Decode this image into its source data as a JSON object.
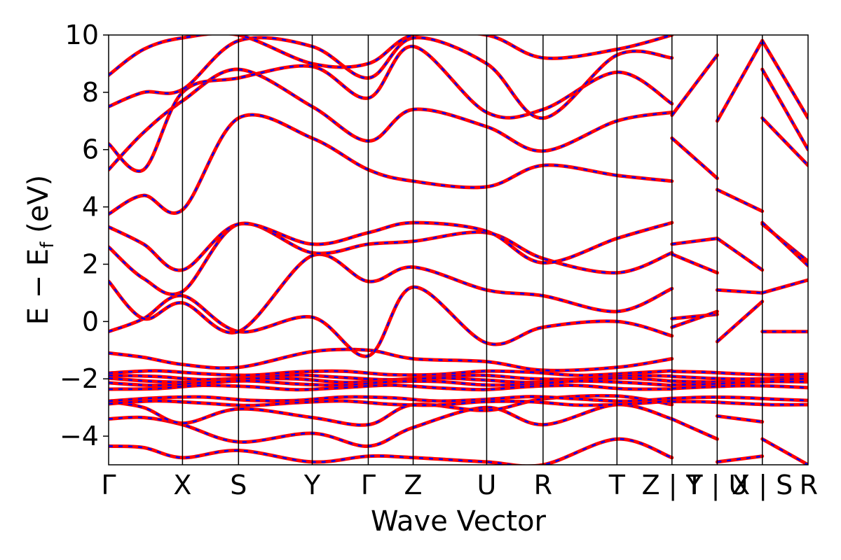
{
  "chart_data": {
    "type": "line",
    "xlabel": "Wave Vector",
    "ylabel": "E − E",
    "ylabel_sub": "f",
    "ylabel_unit": " (eV)",
    "ylim": [
      -5,
      10
    ],
    "yticks": [
      {
        "value": 10,
        "label": "10"
      },
      {
        "value": 8,
        "label": "8"
      },
      {
        "value": 6,
        "label": "6"
      },
      {
        "value": 4,
        "label": "4"
      },
      {
        "value": 2,
        "label": "2"
      },
      {
        "value": 0,
        "label": "0"
      },
      {
        "value": -2,
        "label": "−2"
      },
      {
        "value": -4,
        "label": "−4"
      }
    ],
    "xlim": [
      0,
      1
    ],
    "kpoints": [
      {
        "label": "Γ",
        "x": 0.0
      },
      {
        "label": "X",
        "x": 0.1056
      },
      {
        "label": "S",
        "x": 0.1857
      },
      {
        "label": "Y",
        "x": 0.2911
      },
      {
        "label": "Γ",
        "x": 0.3712
      },
      {
        "label": "Z",
        "x": 0.4354
      },
      {
        "label": "U",
        "x": 0.5405
      },
      {
        "label": "R",
        "x": 0.6211
      },
      {
        "label": "T",
        "x": 0.7268
      },
      {
        "label": "Z | Y",
        "x": 0.8054
      },
      {
        "label": "T | U",
        "x": 0.8701
      },
      {
        "label": "X | S",
        "x": 0.9346
      },
      {
        "label": "R",
        "x": 1.0
      }
    ],
    "segment_breaks": [
      0.8054,
      0.8701,
      0.9346
    ],
    "series": [
      {
        "color": "#ff0000",
        "style": "solid"
      },
      {
        "color": "#0000ff",
        "style": "dashed"
      }
    ],
    "flat_bands": [
      -1.8,
      -1.95,
      -2.05,
      -2.15,
      -2.3,
      -2.7,
      -2.85
    ],
    "bands": [
      [
        [
          0.0,
          -4.35
        ],
        [
          0.05,
          -4.4
        ],
        [
          0.1056,
          -4.75
        ],
        [
          0.1857,
          -4.5
        ],
        [
          0.2911,
          -4.9
        ],
        [
          0.3712,
          -4.7
        ],
        [
          0.4354,
          -4.75
        ],
        [
          0.5405,
          -4.9
        ],
        [
          0.6211,
          -5.0
        ],
        [
          0.7268,
          -4.1
        ],
        [
          0.8054,
          -4.75
        ]
      ],
      [
        [
          0.0,
          -3.4
        ],
        [
          0.05,
          -3.35
        ],
        [
          0.1056,
          -3.6
        ],
        [
          0.1857,
          -4.2
        ],
        [
          0.2911,
          -3.9
        ],
        [
          0.3712,
          -4.35
        ],
        [
          0.4354,
          -3.7
        ],
        [
          0.5405,
          -3.0
        ],
        [
          0.6211,
          -3.6
        ],
        [
          0.7268,
          -2.9
        ],
        [
          0.8054,
          -3.4
        ]
      ],
      [
        [
          0.0,
          -2.8
        ],
        [
          0.05,
          -3.0
        ],
        [
          0.1056,
          -3.55
        ],
        [
          0.1857,
          -3.05
        ],
        [
          0.2911,
          -3.35
        ],
        [
          0.3712,
          -3.6
        ],
        [
          0.4354,
          -2.9
        ],
        [
          0.5405,
          -3.1
        ],
        [
          0.6211,
          -2.7
        ],
        [
          0.7268,
          -2.6
        ],
        [
          0.8054,
          -2.9
        ]
      ],
      [
        [
          0.0,
          -1.1
        ],
        [
          0.05,
          -1.25
        ],
        [
          0.1056,
          -1.5
        ],
        [
          0.1857,
          -1.6
        ],
        [
          0.2911,
          -1.05
        ],
        [
          0.3712,
          -1.0
        ],
        [
          0.4354,
          -1.3
        ],
        [
          0.5405,
          -1.4
        ],
        [
          0.6211,
          -1.7
        ],
        [
          0.7268,
          -1.6
        ],
        [
          0.8054,
          -1.3
        ]
      ],
      [
        [
          0.0,
          -0.35
        ],
        [
          0.05,
          0.1
        ],
        [
          0.1056,
          0.9
        ],
        [
          0.1857,
          -0.35
        ],
        [
          0.2911,
          0.15
        ],
        [
          0.3712,
          -1.2
        ],
        [
          0.4354,
          1.2
        ],
        [
          0.5405,
          -0.75
        ],
        [
          0.6211,
          -0.2
        ],
        [
          0.7268,
          0.0
        ],
        [
          0.8054,
          -0.5
        ]
      ],
      [
        [
          0.0,
          1.4
        ],
        [
          0.05,
          0.1
        ],
        [
          0.1056,
          0.65
        ],
        [
          0.1857,
          -0.35
        ],
        [
          0.2911,
          2.3
        ],
        [
          0.3712,
          1.4
        ],
        [
          0.4354,
          1.9
        ],
        [
          0.5405,
          1.1
        ],
        [
          0.6211,
          0.9
        ],
        [
          0.7268,
          0.35
        ],
        [
          0.8054,
          1.15
        ]
      ],
      [
        [
          0.0,
          2.6
        ],
        [
          0.05,
          1.5
        ],
        [
          0.1056,
          1.05
        ],
        [
          0.1857,
          3.4
        ],
        [
          0.2911,
          2.4
        ],
        [
          0.3712,
          2.7
        ],
        [
          0.4354,
          2.8
        ],
        [
          0.5405,
          3.1
        ],
        [
          0.6211,
          2.2
        ],
        [
          0.7268,
          1.7
        ],
        [
          0.8054,
          2.4
        ]
      ],
      [
        [
          0.0,
          3.3
        ],
        [
          0.05,
          2.7
        ],
        [
          0.1056,
          1.8
        ],
        [
          0.1857,
          3.4
        ],
        [
          0.2911,
          2.7
        ],
        [
          0.3712,
          3.1
        ],
        [
          0.4354,
          3.45
        ],
        [
          0.5405,
          3.15
        ],
        [
          0.6211,
          2.05
        ],
        [
          0.7268,
          2.9
        ],
        [
          0.8054,
          3.45
        ]
      ],
      [
        [
          0.0,
          3.75
        ],
        [
          0.05,
          4.4
        ],
        [
          0.1056,
          3.9
        ],
        [
          0.1857,
          7.1
        ],
        [
          0.2911,
          6.4
        ],
        [
          0.3712,
          5.3
        ],
        [
          0.4354,
          4.9
        ],
        [
          0.5405,
          4.7
        ],
        [
          0.6211,
          5.45
        ],
        [
          0.7268,
          5.1
        ],
        [
          0.8054,
          4.9
        ]
      ],
      [
        [
          0.0,
          5.3
        ],
        [
          0.05,
          6.6
        ],
        [
          0.1056,
          7.7
        ],
        [
          0.1857,
          8.8
        ],
        [
          0.2911,
          7.5
        ],
        [
          0.3712,
          6.3
        ],
        [
          0.4354,
          7.4
        ],
        [
          0.5405,
          6.8
        ],
        [
          0.6211,
          5.95
        ],
        [
          0.7268,
          7.0
        ],
        [
          0.8054,
          7.3
        ]
      ],
      [
        [
          0.0,
          6.2
        ],
        [
          0.05,
          5.3
        ],
        [
          0.1056,
          8.0
        ],
        [
          0.1857,
          8.5
        ],
        [
          0.2911,
          8.9
        ],
        [
          0.3712,
          7.8
        ],
        [
          0.4354,
          9.6
        ],
        [
          0.5405,
          7.3
        ],
        [
          0.6211,
          7.4
        ],
        [
          0.7268,
          8.7
        ],
        [
          0.8054,
          7.6
        ]
      ],
      [
        [
          0.0,
          7.5
        ],
        [
          0.05,
          8.0
        ],
        [
          0.1056,
          8.1
        ],
        [
          0.1857,
          9.8
        ],
        [
          0.2911,
          9.6
        ],
        [
          0.3712,
          8.5
        ],
        [
          0.4354,
          9.9
        ],
        [
          0.5405,
          9.0
        ],
        [
          0.6211,
          7.1
        ],
        [
          0.7268,
          9.3
        ],
        [
          0.8054,
          9.2
        ]
      ],
      [
        [
          0.0,
          8.6
        ],
        [
          0.05,
          9.5
        ],
        [
          0.1056,
          9.9
        ],
        [
          0.1857,
          10.0
        ],
        [
          0.2911,
          9.0
        ],
        [
          0.3712,
          9.0
        ],
        [
          0.4354,
          10.0
        ],
        [
          0.5405,
          10.0
        ],
        [
          0.6211,
          9.2
        ],
        [
          0.7268,
          9.5
        ],
        [
          0.8054,
          10.0
        ]
      ],
      [
        [
          0.8054,
          0.1
        ],
        [
          0.8701,
          0.25
        ]
      ],
      [
        [
          0.8054,
          -0.2
        ],
        [
          0.8701,
          0.35
        ]
      ],
      [
        [
          0.8054,
          2.7
        ],
        [
          0.8701,
          2.9
        ]
      ],
      [
        [
          0.8054,
          2.35
        ],
        [
          0.8701,
          1.7
        ]
      ],
      [
        [
          0.8054,
          6.4
        ],
        [
          0.8701,
          5.0
        ]
      ],
      [
        [
          0.8054,
          7.2
        ],
        [
          0.8701,
          9.3
        ]
      ],
      [
        [
          0.8054,
          -3.4
        ],
        [
          0.8701,
          -4.1
        ]
      ],
      [
        [
          0.8701,
          -0.7
        ],
        [
          0.9346,
          0.7
        ]
      ],
      [
        [
          0.8701,
          1.1
        ],
        [
          0.9346,
          1.0
        ]
      ],
      [
        [
          0.8701,
          2.9
        ],
        [
          0.9346,
          1.8
        ]
      ],
      [
        [
          0.8701,
          4.6
        ],
        [
          0.9346,
          3.85
        ]
      ],
      [
        [
          0.8701,
          7.0
        ],
        [
          0.9346,
          9.8
        ]
      ],
      [
        [
          0.8701,
          -3.3
        ],
        [
          0.9346,
          -3.5
        ]
      ],
      [
        [
          0.8701,
          -4.9
        ],
        [
          0.9346,
          -4.7
        ]
      ],
      [
        [
          0.9346,
          -0.35
        ],
        [
          1.0,
          -0.35
        ]
      ],
      [
        [
          0.9346,
          1.0
        ],
        [
          1.0,
          1.45
        ]
      ],
      [
        [
          0.9346,
          3.4
        ],
        [
          1.0,
          2.1
        ]
      ],
      [
        [
          0.9346,
          3.45
        ],
        [
          1.0,
          1.95
        ]
      ],
      [
        [
          0.9346,
          7.1
        ],
        [
          1.0,
          5.45
        ]
      ],
      [
        [
          0.9346,
          8.8
        ],
        [
          1.0,
          6.0
        ]
      ],
      [
        [
          0.9346,
          9.8
        ],
        [
          1.0,
          7.1
        ]
      ],
      [
        [
          0.9346,
          -4.1
        ],
        [
          1.0,
          -5.0
        ]
      ]
    ]
  }
}
